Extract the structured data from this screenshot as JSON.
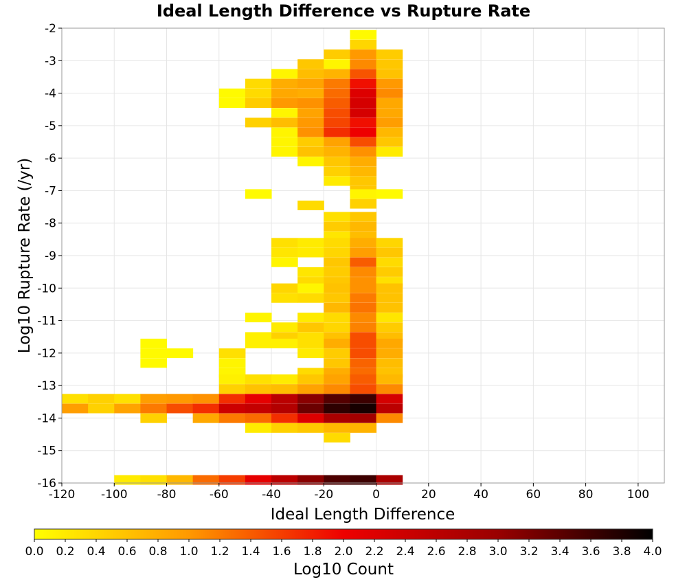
{
  "chart_data": {
    "type": "heatmap",
    "title": "Ideal Length Difference vs Rupture Rate",
    "xlabel": "Ideal Length Difference",
    "ylabel": "Log10 Rupture Rate (/yr)",
    "xlim": [
      -120,
      110
    ],
    "ylim": [
      -16,
      -2
    ],
    "xticks": [
      "-120",
      "-100",
      "-80",
      "-60",
      "-40",
      "-20",
      "0",
      "20",
      "40",
      "60",
      "80",
      "100"
    ],
    "yticks": [
      "-2",
      "-3",
      "-4",
      "-5",
      "-6",
      "-7",
      "-8",
      "-9",
      "-10",
      "-11",
      "-12",
      "-13",
      "-14",
      "-15",
      "-16"
    ],
    "grid": true,
    "x_bin_width": 10,
    "y_bin_height": 0.2857,
    "colorbar": {
      "label": "Log10 Count",
      "min": 0.0,
      "max": 4.0,
      "ticks": [
        "0.0",
        "0.2",
        "0.4",
        "0.6",
        "0.8",
        "1.0",
        "1.2",
        "1.4",
        "1.6",
        "1.8",
        "2.0",
        "2.2",
        "2.4",
        "2.6",
        "2.8",
        "3.0",
        "3.2",
        "3.4",
        "3.6",
        "3.8",
        "4.0"
      ],
      "placement": "bottom",
      "colormap": [
        "#ffff00",
        "#ff9900",
        "#ee0000",
        "#990000",
        "#000000"
      ]
    },
    "cells": [
      [
        -5,
        -2.2,
        0.05
      ],
      [
        -5,
        -2.5,
        0.4
      ],
      [
        -15,
        -2.8,
        0.5
      ],
      [
        -5,
        -2.8,
        1.0
      ],
      [
        5,
        -2.8,
        0.5
      ],
      [
        -25,
        -3.1,
        0.55
      ],
      [
        -15,
        -3.1,
        0.1
      ],
      [
        -5,
        -3.1,
        1.1
      ],
      [
        5,
        -3.1,
        0.55
      ],
      [
        -35,
        -3.4,
        0.1
      ],
      [
        -25,
        -3.4,
        0.65
      ],
      [
        -15,
        -3.4,
        0.75
      ],
      [
        -5,
        -3.4,
        1.45
      ],
      [
        5,
        -3.4,
        0.6
      ],
      [
        -45,
        -3.7,
        0.35
      ],
      [
        -35,
        -3.7,
        0.8
      ],
      [
        -25,
        -3.7,
        0.9
      ],
      [
        -15,
        -3.7,
        1.2
      ],
      [
        -5,
        -3.7,
        1.9
      ],
      [
        5,
        -3.7,
        1.0
      ],
      [
        -55,
        -4.0,
        0.05
      ],
      [
        -45,
        -4.0,
        0.35
      ],
      [
        -35,
        -4.0,
        0.85
      ],
      [
        -25,
        -4.0,
        0.8
      ],
      [
        -15,
        -4.0,
        1.3
      ],
      [
        -5,
        -4.0,
        2.2
      ],
      [
        5,
        -4.0,
        1.1
      ],
      [
        -55,
        -4.3,
        0.05
      ],
      [
        -45,
        -4.3,
        0.5
      ],
      [
        -35,
        -4.3,
        1.0
      ],
      [
        -25,
        -4.3,
        1.05
      ],
      [
        -15,
        -4.3,
        1.4
      ],
      [
        -5,
        -4.3,
        2.3
      ],
      [
        5,
        -4.3,
        0.85
      ],
      [
        -35,
        -4.6,
        0.1
      ],
      [
        -25,
        -4.6,
        0.9
      ],
      [
        -15,
        -4.6,
        1.5
      ],
      [
        -5,
        -4.6,
        2.3
      ],
      [
        5,
        -4.6,
        0.85
      ],
      [
        -45,
        -4.9,
        0.45
      ],
      [
        -35,
        -4.9,
        0.65
      ],
      [
        -25,
        -4.9,
        1.0
      ],
      [
        -15,
        -4.9,
        1.55
      ],
      [
        -5,
        -4.9,
        1.9
      ],
      [
        5,
        -4.9,
        0.95
      ],
      [
        -35,
        -5.2,
        0.1
      ],
      [
        -25,
        -5.2,
        1.05
      ],
      [
        -15,
        -5.2,
        1.7
      ],
      [
        -5,
        -5.2,
        2.0
      ],
      [
        5,
        -5.2,
        0.7
      ],
      [
        -35,
        -5.5,
        0.1
      ],
      [
        -25,
        -5.5,
        0.5
      ],
      [
        -15,
        -5.5,
        0.9
      ],
      [
        -5,
        -5.5,
        1.5
      ],
      [
        5,
        -5.5,
        0.55
      ],
      [
        -35,
        -5.8,
        0.1
      ],
      [
        -25,
        -5.8,
        0.6
      ],
      [
        -15,
        -5.8,
        0.75
      ],
      [
        -5,
        -5.8,
        1.05
      ],
      [
        5,
        -5.8,
        0.2
      ],
      [
        -25,
        -6.1,
        0.1
      ],
      [
        -15,
        -6.1,
        0.55
      ],
      [
        -5,
        -6.1,
        0.8
      ],
      [
        -15,
        -6.4,
        0.45
      ],
      [
        -5,
        -6.4,
        0.7
      ],
      [
        -15,
        -6.7,
        0.2
      ],
      [
        -5,
        -6.7,
        0.55
      ],
      [
        -5,
        -7.0,
        0.55
      ],
      [
        -45,
        -7.1,
        0.05
      ],
      [
        -5,
        -7.1,
        0.1
      ],
      [
        5,
        -7.1,
        0.05
      ],
      [
        -5,
        -7.4,
        0.45
      ],
      [
        -25,
        -7.45,
        0.35
      ],
      [
        -15,
        -7.8,
        0.3
      ],
      [
        -5,
        -7.8,
        0.55
      ],
      [
        -15,
        -8.1,
        0.5
      ],
      [
        -5,
        -8.1,
        0.7
      ],
      [
        -15,
        -8.4,
        0.25
      ],
      [
        -5,
        -8.4,
        0.65
      ],
      [
        -35,
        -8.6,
        0.3
      ],
      [
        -25,
        -8.6,
        0.2
      ],
      [
        -15,
        -8.6,
        0.35
      ],
      [
        -5,
        -8.6,
        0.8
      ],
      [
        5,
        -8.6,
        0.4
      ],
      [
        -35,
        -8.9,
        0.25
      ],
      [
        -25,
        -8.9,
        0.2
      ],
      [
        -15,
        -8.9,
        0.4
      ],
      [
        -5,
        -8.9,
        0.95
      ],
      [
        5,
        -8.9,
        0.55
      ],
      [
        -35,
        -9.2,
        0.1
      ],
      [
        -15,
        -9.2,
        0.55
      ],
      [
        -5,
        -9.2,
        1.4
      ],
      [
        5,
        -9.2,
        0.35
      ],
      [
        -25,
        -9.5,
        0.25
      ],
      [
        -15,
        -9.5,
        0.5
      ],
      [
        -5,
        -9.5,
        1.1
      ],
      [
        5,
        -9.5,
        0.5
      ],
      [
        -25,
        -9.8,
        0.35
      ],
      [
        -15,
        -9.8,
        0.55
      ],
      [
        -5,
        -9.8,
        1.05
      ],
      [
        5,
        -9.8,
        0.3
      ],
      [
        -35,
        -10.0,
        0.4
      ],
      [
        -25,
        -10.0,
        0.1
      ],
      [
        -15,
        -10.0,
        0.6
      ],
      [
        -5,
        -10.0,
        1.05
      ],
      [
        5,
        -10.0,
        0.6
      ],
      [
        -35,
        -10.3,
        0.3
      ],
      [
        -25,
        -10.3,
        0.35
      ],
      [
        -15,
        -10.3,
        0.55
      ],
      [
        -5,
        -10.3,
        1.2
      ],
      [
        5,
        -10.3,
        0.6
      ],
      [
        -15,
        -10.6,
        0.7
      ],
      [
        -5,
        -10.6,
        1.25
      ],
      [
        5,
        -10.6,
        0.6
      ],
      [
        -45,
        -10.9,
        0.1
      ],
      [
        -25,
        -10.9,
        0.2
      ],
      [
        -15,
        -10.9,
        0.35
      ],
      [
        -5,
        -10.9,
        1.1
      ],
      [
        5,
        -10.9,
        0.25
      ],
      [
        -35,
        -11.2,
        0.2
      ],
      [
        -25,
        -11.2,
        0.55
      ],
      [
        -15,
        -11.2,
        0.4
      ],
      [
        -5,
        -11.2,
        1.15
      ],
      [
        5,
        -11.2,
        0.5
      ],
      [
        -45,
        -11.5,
        0.15
      ],
      [
        -35,
        -11.5,
        0.45
      ],
      [
        -25,
        -11.5,
        0.3
      ],
      [
        -15,
        -11.5,
        0.6
      ],
      [
        -5,
        -11.5,
        1.5
      ],
      [
        5,
        -11.5,
        0.65
      ],
      [
        -85,
        -11.7,
        0.05
      ],
      [
        -45,
        -11.7,
        0.15
      ],
      [
        -35,
        -11.7,
        0.15
      ],
      [
        -25,
        -11.7,
        0.3
      ],
      [
        -15,
        -11.7,
        0.8
      ],
      [
        -5,
        -11.7,
        1.5
      ],
      [
        5,
        -11.7,
        0.85
      ],
      [
        -85,
        -12.0,
        0.05
      ],
      [
        -75,
        -12.0,
        0.05
      ],
      [
        -55,
        -12.0,
        0.3
      ],
      [
        -25,
        -12.0,
        0.2
      ],
      [
        -15,
        -12.0,
        0.5
      ],
      [
        -5,
        -12.0,
        1.5
      ],
      [
        5,
        -12.0,
        0.8
      ],
      [
        -85,
        -12.3,
        0.05
      ],
      [
        -55,
        -12.3,
        0.1
      ],
      [
        -15,
        -12.3,
        0.55
      ],
      [
        -5,
        -12.3,
        1.35
      ],
      [
        5,
        -12.3,
        0.65
      ],
      [
        -55,
        -12.6,
        0.1
      ],
      [
        -25,
        -12.6,
        0.35
      ],
      [
        -15,
        -12.6,
        0.8
      ],
      [
        -5,
        -12.6,
        1.3
      ],
      [
        5,
        -12.6,
        0.6
      ],
      [
        -55,
        -12.8,
        0.15
      ],
      [
        -45,
        -12.8,
        0.3
      ],
      [
        -35,
        -12.8,
        0.2
      ],
      [
        -25,
        -12.8,
        0.55
      ],
      [
        -15,
        -12.8,
        0.9
      ],
      [
        -5,
        -12.8,
        1.4
      ],
      [
        5,
        -12.8,
        0.7
      ],
      [
        -55,
        -13.1,
        0.45
      ],
      [
        -45,
        -13.1,
        0.6
      ],
      [
        -35,
        -13.1,
        0.65
      ],
      [
        -25,
        -13.1,
        0.9
      ],
      [
        -15,
        -13.1,
        1.1
      ],
      [
        -5,
        -13.1,
        1.5
      ],
      [
        5,
        -13.1,
        1.1
      ],
      [
        -115,
        -13.4,
        0.3
      ],
      [
        -105,
        -13.4,
        0.45
      ],
      [
        -95,
        -13.4,
        0.3
      ],
      [
        -85,
        -13.4,
        0.95
      ],
      [
        -75,
        -13.4,
        1.0
      ],
      [
        -65,
        -13.4,
        1.05
      ],
      [
        -55,
        -13.4,
        1.7
      ],
      [
        -45,
        -13.4,
        2.1
      ],
      [
        -35,
        -13.4,
        2.6
      ],
      [
        -25,
        -13.4,
        3.1
      ],
      [
        -15,
        -13.4,
        3.45
      ],
      [
        -5,
        -13.4,
        3.6
      ],
      [
        5,
        -13.4,
        2.3
      ],
      [
        -115,
        -13.7,
        0.95
      ],
      [
        -105,
        -13.7,
        0.45
      ],
      [
        -95,
        -13.7,
        0.9
      ],
      [
        -85,
        -13.7,
        1.2
      ],
      [
        -75,
        -13.7,
        1.5
      ],
      [
        -65,
        -13.7,
        1.7
      ],
      [
        -55,
        -13.7,
        2.4
      ],
      [
        -45,
        -13.7,
        2.5
      ],
      [
        -35,
        -13.7,
        2.7
      ],
      [
        -25,
        -13.7,
        3.3
      ],
      [
        -15,
        -13.7,
        3.7
      ],
      [
        -5,
        -13.7,
        3.85
      ],
      [
        5,
        -13.7,
        2.6
      ],
      [
        -85,
        -14.0,
        0.45
      ],
      [
        -65,
        -14.0,
        0.85
      ],
      [
        -55,
        -14.0,
        1.2
      ],
      [
        -45,
        -14.0,
        1.3
      ],
      [
        -35,
        -14.0,
        1.7
      ],
      [
        -25,
        -14.0,
        2.2
      ],
      [
        -15,
        -14.0,
        2.8
      ],
      [
        -5,
        -14.0,
        2.9
      ],
      [
        5,
        -14.0,
        1.1
      ],
      [
        -45,
        -14.3,
        0.2
      ],
      [
        -35,
        -14.3,
        0.45
      ],
      [
        -25,
        -14.3,
        0.55
      ],
      [
        -15,
        -14.3,
        0.7
      ],
      [
        -5,
        -14.3,
        0.75
      ],
      [
        -15,
        -14.6,
        0.35
      ],
      [
        -95,
        -15.9,
        0.2
      ],
      [
        -85,
        -15.9,
        0.3
      ],
      [
        -75,
        -15.9,
        0.7
      ],
      [
        -65,
        -15.9,
        1.3
      ],
      [
        -55,
        -15.9,
        1.6
      ],
      [
        -45,
        -15.9,
        2.1
      ],
      [
        -35,
        -15.9,
        2.6
      ],
      [
        -25,
        -15.9,
        3.1
      ],
      [
        -15,
        -15.9,
        3.5
      ],
      [
        -5,
        -15.9,
        3.6
      ],
      [
        5,
        -15.9,
        2.8
      ]
    ]
  }
}
